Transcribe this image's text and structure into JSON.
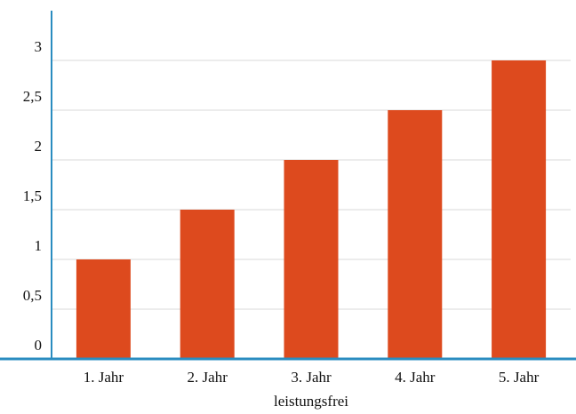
{
  "chart_data": {
    "type": "bar",
    "categories": [
      "1. Jahr",
      "2. Jahr",
      "3. Jahr",
      "4. Jahr",
      "5. Jahr"
    ],
    "values": [
      1,
      1.5,
      2,
      2.5,
      3
    ],
    "y_ticks": [
      "0",
      "0,5",
      "1",
      "1,5",
      "2",
      "2,5",
      "3"
    ],
    "y_tick_values": [
      0,
      0.5,
      1,
      1.5,
      2,
      2.5,
      3
    ],
    "xlabel": "leistungsfrei",
    "ylabel": "",
    "ylim": [
      0,
      3.5
    ],
    "grid": true,
    "colors": {
      "bar": "#dd4a1e",
      "axis": "#2a8cc0",
      "grid": "#d9d9d9"
    }
  }
}
